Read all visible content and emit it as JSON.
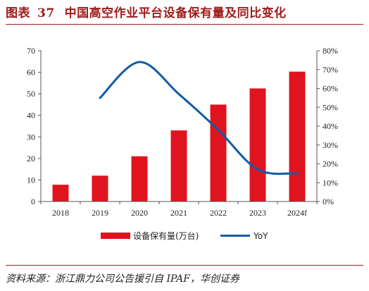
{
  "header": {
    "label": "图表",
    "number": "37",
    "title": "中国高空作业平台设备保有量及同比变化"
  },
  "source": "资料来源：浙江鼎力公司公告援引自 IPAF，华创证券",
  "colors": {
    "bar": "#e0141e",
    "line": "#0f5ca8",
    "accent": "#9e1b1b"
  },
  "chart_data": {
    "type": "bar",
    "categories": [
      "2018",
      "2019",
      "2020",
      "2021",
      "2022",
      "2023",
      "2024f"
    ],
    "series": [
      {
        "name": "设备保有量(万台)",
        "type": "bar",
        "axis": "left",
        "values": [
          7.8,
          12.0,
          21.0,
          33.0,
          45.0,
          52.5,
          60.3
        ]
      },
      {
        "name": "YoY",
        "type": "line",
        "axis": "right",
        "values": [
          null,
          55,
          74,
          57,
          38,
          17,
          15
        ]
      }
    ],
    "y_left": {
      "min": 0,
      "max": 70,
      "ticks": [
        "0",
        "10",
        "20",
        "30",
        "40",
        "50",
        "60",
        "70"
      ]
    },
    "y_right": {
      "min": 0,
      "max": 80,
      "ticks": [
        "0%",
        "10%",
        "20%",
        "30%",
        "40%",
        "50%",
        "60%",
        "70%",
        "80%"
      ]
    },
    "grid": false,
    "legend": "bottom-center"
  }
}
